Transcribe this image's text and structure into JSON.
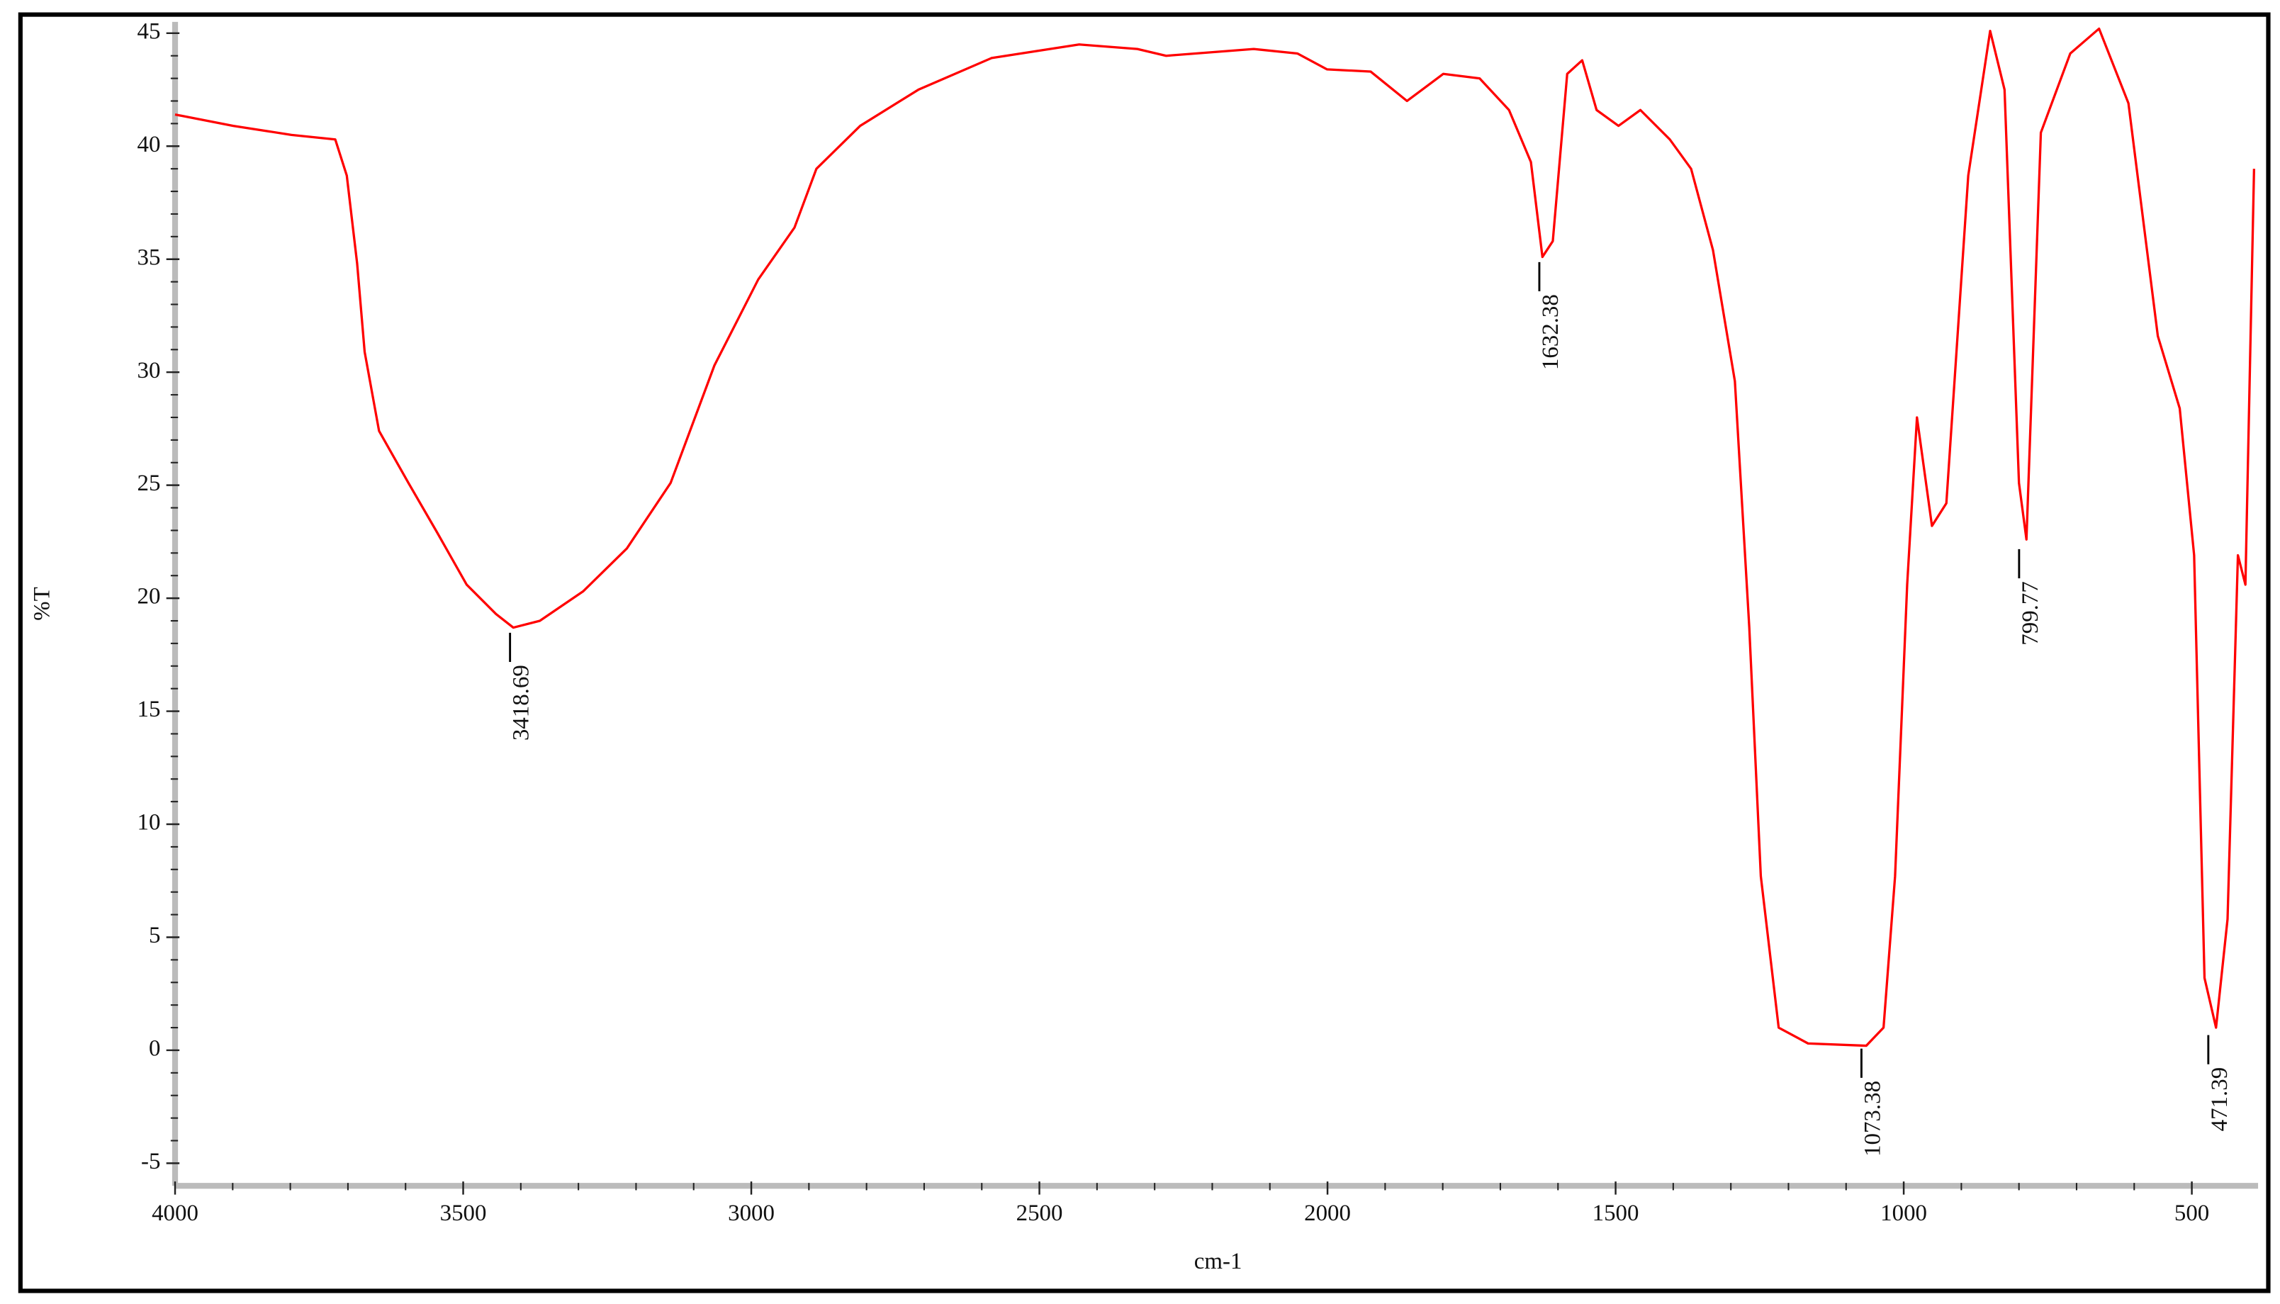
{
  "chart_data": {
    "type": "line",
    "xlabel": "cm-1",
    "ylabel": "%T",
    "x": [
      4000,
      3899,
      3798,
      3722,
      3702,
      3684,
      3671,
      3646,
      3595,
      3545,
      3494,
      3443,
      3413,
      3367,
      3292,
      3216,
      3140,
      3064,
      2988,
      2925,
      2887,
      2811,
      2710,
      2583,
      2431,
      2330,
      2280,
      2128,
      2052,
      2001,
      1925,
      1862,
      1799,
      1736,
      1685,
      1647,
      1627,
      1609,
      1584,
      1558,
      1533,
      1495,
      1457,
      1406,
      1369,
      1331,
      1293,
      1268,
      1248,
      1217,
      1166,
      1065,
      1035,
      1015,
      994,
      977,
      951,
      926,
      888,
      850,
      825,
      800,
      787,
      762,
      711,
      661,
      610,
      559,
      521,
      496,
      478,
      458,
      438,
      420,
      407,
      392
    ],
    "series": [
      {
        "color": "#ff0000",
        "values": [
          41.4,
          40.9,
          40.5,
          40.3,
          38.7,
          34.8,
          30.9,
          27.4,
          25.1,
          22.9,
          20.6,
          19.3,
          18.7,
          19.0,
          20.3,
          22.2,
          25.1,
          30.3,
          34.1,
          36.4,
          39.0,
          40.9,
          42.5,
          43.9,
          44.5,
          44.3,
          44.0,
          44.3,
          44.1,
          43.4,
          43.3,
          42.0,
          43.2,
          43.0,
          41.6,
          39.3,
          35.1,
          35.8,
          43.2,
          43.8,
          41.6,
          40.9,
          41.6,
          40.3,
          39.0,
          35.4,
          29.6,
          18.7,
          7.7,
          1.0,
          0.3,
          0.2,
          1.0,
          7.7,
          20.6,
          28.0,
          23.2,
          24.2,
          38.7,
          45.1,
          42.5,
          25.1,
          22.6,
          40.6,
          44.1,
          45.2,
          41.9,
          31.6,
          28.4,
          21.9,
          3.2,
          1.0,
          5.8,
          21.9,
          20.6,
          39.0
        ]
      }
    ],
    "xlim": [
      4000,
      385
    ],
    "ylim": [
      -6,
      45.5
    ],
    "xticks": [
      4000,
      3500,
      3000,
      2500,
      2000,
      1500,
      1000,
      500
    ],
    "yticks": [
      -5,
      0,
      5,
      10,
      15,
      20,
      25,
      30,
      35,
      40,
      45
    ],
    "annotations": [
      {
        "x": 3418.69,
        "y": 18.6
      },
      {
        "x": 1632.38,
        "y": 35.0
      },
      {
        "x": 1073.38,
        "y": 0.2
      },
      {
        "x": 799.77,
        "y": 22.3
      },
      {
        "x": 471.39,
        "y": 0.8
      }
    ]
  }
}
